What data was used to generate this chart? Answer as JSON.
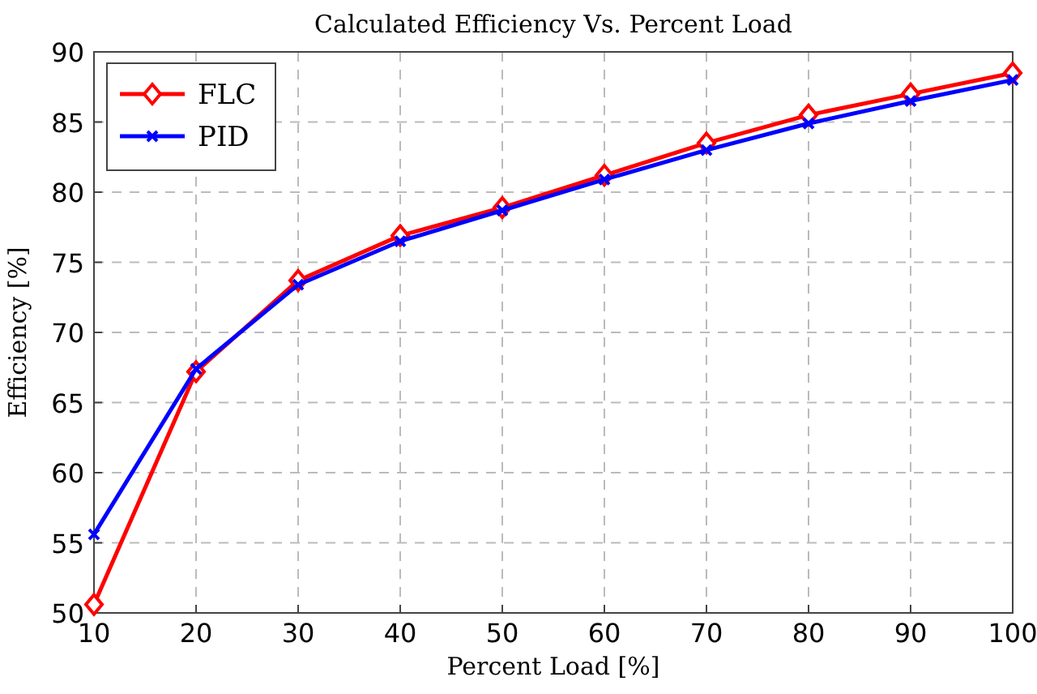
{
  "chart_data": {
    "type": "line",
    "title": "Calculated Efficiency Vs. Percent Load",
    "xlabel": "Percent Load [%]",
    "ylabel": "Efficiency [%]",
    "x": [
      10,
      20,
      30,
      40,
      50,
      60,
      70,
      80,
      90,
      100
    ],
    "series": [
      {
        "name": "FLC",
        "color": "#ff0000",
        "marker": "diamond",
        "values": [
          50.6,
          67.2,
          73.7,
          76.9,
          78.9,
          81.2,
          83.5,
          85.5,
          87.0,
          88.5
        ]
      },
      {
        "name": "PID",
        "color": "#0000ff",
        "marker": "cross",
        "values": [
          55.6,
          67.4,
          73.4,
          76.5,
          78.7,
          80.9,
          83.0,
          84.9,
          86.5,
          88.0
        ]
      }
    ],
    "xlim": [
      10,
      100
    ],
    "xticks": [
      10,
      20,
      30,
      40,
      50,
      60,
      70,
      80,
      90,
      100
    ],
    "ylim": [
      50,
      90
    ],
    "yticks": [
      50,
      55,
      60,
      65,
      70,
      75,
      80,
      85,
      90
    ],
    "grid": true,
    "legend": "top left",
    "line_style": "solid"
  }
}
